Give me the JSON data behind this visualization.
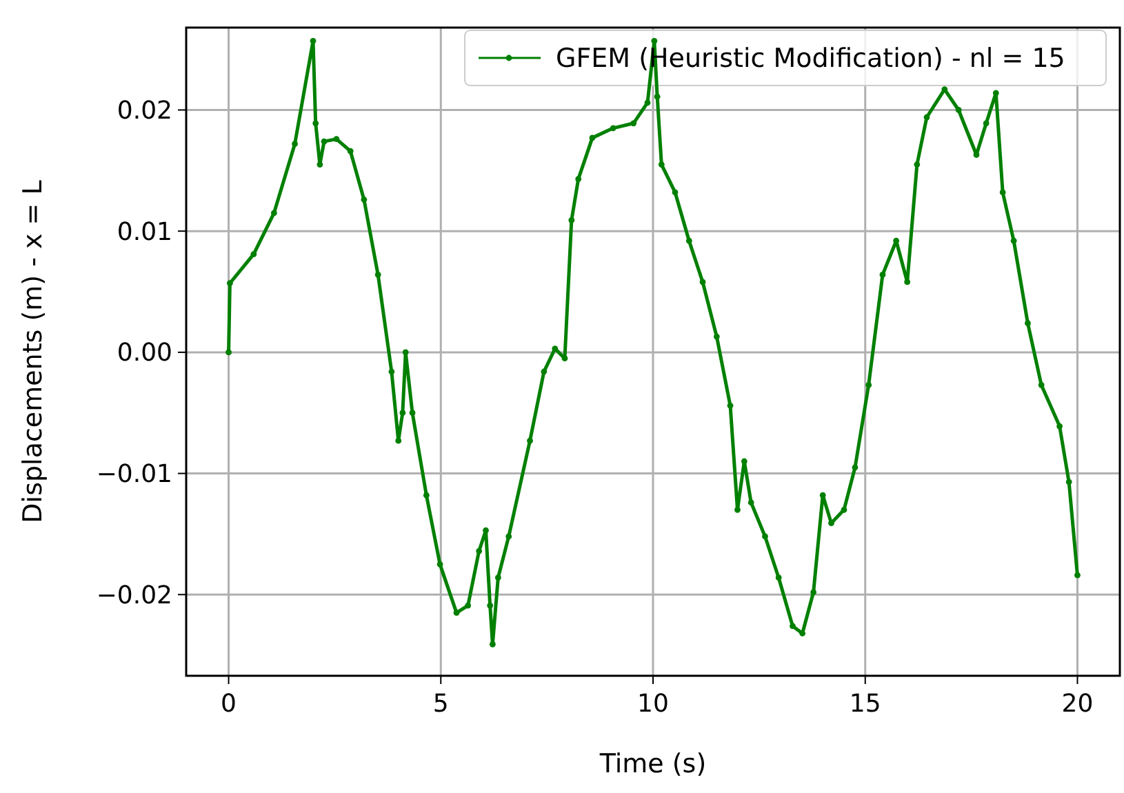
{
  "chart_data": {
    "type": "line",
    "xlabel": "Time (s)",
    "ylabel": "Displacements (m) - x = L",
    "xlim": [
      -1,
      21
    ],
    "ylim": [
      -0.0267,
      0.0268
    ],
    "xticks": [
      0,
      5,
      10,
      15,
      20
    ],
    "yticks": [
      {
        "value": -0.02,
        "label": "−0.02"
      },
      {
        "value": -0.01,
        "label": "−0.01"
      },
      {
        "value": 0,
        "label": "0.00"
      },
      {
        "value": 0.01,
        "label": "0.01"
      },
      {
        "value": 0.02,
        "label": "0.02"
      }
    ],
    "grid": true,
    "legend": "top right",
    "marker": "circle",
    "line_style": "solid",
    "series": [
      {
        "name": "GFEM (Heuristic Modification) - nl = 15",
        "color": "#008000",
        "x": [
          0,
          0.03,
          0.59,
          1.07,
          1.56,
          1.99,
          2.05,
          2.15,
          2.25,
          2.54,
          2.87,
          3.19,
          3.52,
          3.84,
          4.0,
          4.1,
          4.17,
          4.33,
          4.66,
          4.98,
          5.37,
          5.64,
          5.9,
          6.06,
          6.16,
          6.22,
          6.35,
          6.6,
          7.1,
          7.43,
          7.69,
          7.92,
          8.08,
          8.24,
          8.57,
          9.06,
          9.54,
          9.87,
          10.03,
          10.1,
          10.2,
          10.52,
          10.85,
          11.17,
          11.5,
          11.82,
          11.99,
          12.15,
          12.31,
          12.64,
          12.96,
          13.29,
          13.52,
          13.78,
          14.0,
          14.2,
          14.5,
          14.76,
          15.08,
          15.41,
          15.73,
          15.99,
          16.22,
          16.45,
          16.87,
          17.2,
          17.62,
          17.85,
          18.08,
          18.24,
          18.5,
          18.83,
          19.15,
          19.58,
          19.8,
          20.0
        ],
        "values": [
          0,
          0.0057,
          0.0081,
          0.0115,
          0.0172,
          0.0257,
          0.0189,
          0.0155,
          0.0174,
          0.0176,
          0.0166,
          0.0126,
          0.0064,
          -0.0016,
          -0.0073,
          -0.005,
          0.0,
          -0.005,
          -0.0118,
          -0.0175,
          -0.0215,
          -0.0209,
          -0.0164,
          -0.0147,
          -0.0209,
          -0.0241,
          -0.0186,
          -0.0152,
          -0.0073,
          -0.0016,
          0.0003,
          -0.0005,
          0.0109,
          0.0143,
          0.0177,
          0.0185,
          0.0189,
          0.0206,
          0.0257,
          0.0211,
          0.0155,
          0.0132,
          0.0092,
          0.0058,
          0.0013,
          -0.0044,
          -0.013,
          -0.009,
          -0.0124,
          -0.0152,
          -0.0186,
          -0.0226,
          -0.0232,
          -0.0198,
          -0.0118,
          -0.0141,
          -0.013,
          -0.0095,
          -0.0027,
          0.0064,
          0.0092,
          0.0058,
          0.0155,
          0.0194,
          0.0217,
          0.02,
          0.0163,
          0.0189,
          0.0214,
          0.0132,
          0.0092,
          0.0024,
          -0.0027,
          -0.0061,
          -0.0107,
          -0.0184
        ]
      }
    ]
  }
}
